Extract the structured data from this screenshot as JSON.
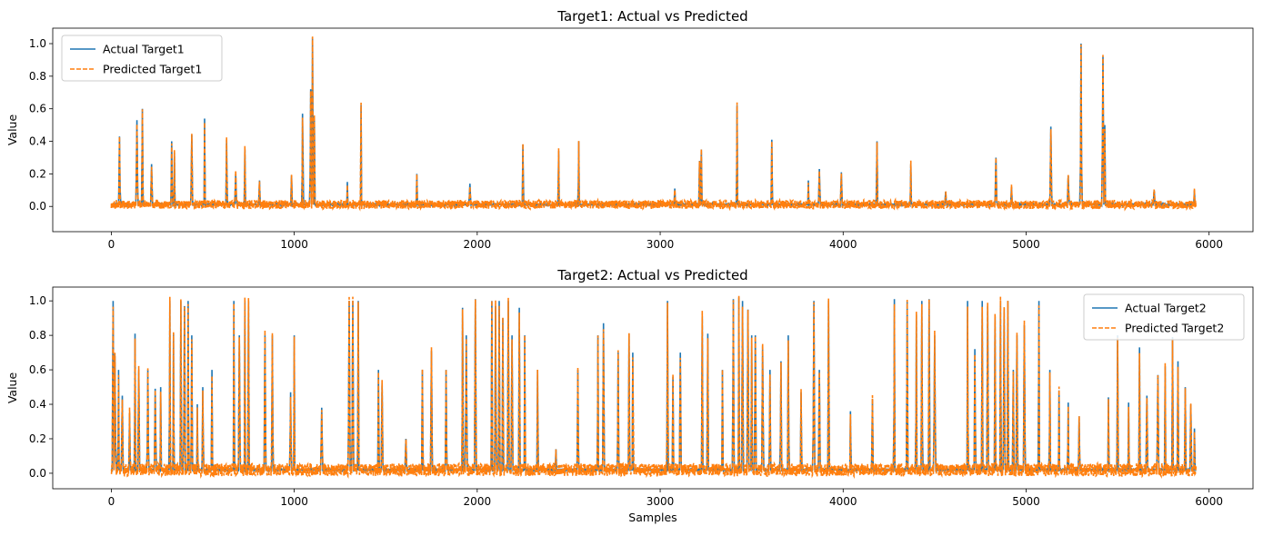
{
  "chart_data": [
    {
      "type": "line",
      "title": "Target1: Actual vs Predicted",
      "xlabel": "",
      "ylabel": "Value",
      "xlim": [
        -320,
        6240
      ],
      "ylim": [
        -0.155,
        1.095
      ],
      "xticks": [
        0,
        1000,
        2000,
        3000,
        4000,
        5000,
        6000
      ],
      "yticks": [
        0.0,
        0.2,
        0.4,
        0.6,
        0.8,
        1.0
      ],
      "ytick_labels": [
        "0.0",
        "0.2",
        "0.4",
        "0.6",
        "0.8",
        "1.0"
      ],
      "legend": "upper-left",
      "grid": false,
      "n_samples": 5930,
      "baseline": 0.012,
      "series": [
        {
          "name": "Actual Target1",
          "color": "#1f77b4",
          "style": "solid"
        },
        {
          "name": "Predicted Target1",
          "color": "#ff7f0e",
          "style": "dashed"
        }
      ],
      "spikes": [
        [
          45,
          0.43
        ],
        [
          140,
          0.53
        ],
        [
          170,
          0.6
        ],
        [
          220,
          0.26
        ],
        [
          330,
          0.4
        ],
        [
          345,
          0.33
        ],
        [
          440,
          0.44
        ],
        [
          510,
          0.54
        ],
        [
          630,
          0.41
        ],
        [
          680,
          0.2
        ],
        [
          730,
          0.35
        ],
        [
          810,
          0.16
        ],
        [
          985,
          0.19
        ],
        [
          1045,
          0.57
        ],
        [
          1090,
          0.72
        ],
        [
          1100,
          1.04
        ],
        [
          1110,
          0.55
        ],
        [
          1290,
          0.15
        ],
        [
          1365,
          0.62
        ],
        [
          1670,
          0.2
        ],
        [
          1960,
          0.14
        ],
        [
          2250,
          0.38
        ],
        [
          2445,
          0.34
        ],
        [
          2555,
          0.4
        ],
        [
          3080,
          0.11
        ],
        [
          3215,
          0.28
        ],
        [
          3225,
          0.35
        ],
        [
          3420,
          0.62
        ],
        [
          3610,
          0.41
        ],
        [
          3810,
          0.16
        ],
        [
          3870,
          0.23
        ],
        [
          3990,
          0.21
        ],
        [
          4185,
          0.4
        ],
        [
          4370,
          0.26
        ],
        [
          4560,
          0.09
        ],
        [
          4835,
          0.3
        ],
        [
          4920,
          0.12
        ],
        [
          5135,
          0.49
        ],
        [
          5230,
          0.19
        ],
        [
          5300,
          1.0
        ],
        [
          5420,
          0.92
        ],
        [
          5430,
          0.5
        ],
        [
          5700,
          0.1
        ],
        [
          5920,
          0.1
        ]
      ]
    },
    {
      "type": "line",
      "title": "Target2: Actual vs Predicted",
      "xlabel": "Samples",
      "ylabel": "Value",
      "xlim": [
        -320,
        6240
      ],
      "ylim": [
        -0.09,
        1.08
      ],
      "xticks": [
        0,
        1000,
        2000,
        3000,
        4000,
        5000,
        6000
      ],
      "yticks": [
        0.0,
        0.2,
        0.4,
        0.6,
        0.8,
        1.0
      ],
      "ytick_labels": [
        "0.0",
        "0.2",
        "0.4",
        "0.6",
        "0.8",
        "1.0"
      ],
      "legend": "upper-right",
      "grid": false,
      "n_samples": 5930,
      "baseline": 0.02,
      "series": [
        {
          "name": "Actual Target2",
          "color": "#1f77b4",
          "style": "solid"
        },
        {
          "name": "Predicted Target2",
          "color": "#ff7f0e",
          "style": "dashed"
        }
      ],
      "spikes": [
        [
          10,
          1.0
        ],
        [
          20,
          0.68
        ],
        [
          40,
          0.6
        ],
        [
          60,
          0.45
        ],
        [
          100,
          0.35
        ],
        [
          130,
          0.81
        ],
        [
          150,
          0.6
        ],
        [
          200,
          0.6
        ],
        [
          240,
          0.49
        ],
        [
          270,
          0.5
        ],
        [
          320,
          1.0
        ],
        [
          340,
          0.81
        ],
        [
          380,
          1.0
        ],
        [
          400,
          0.97
        ],
        [
          420,
          1.0
        ],
        [
          440,
          0.8
        ],
        [
          470,
          0.4
        ],
        [
          500,
          0.5
        ],
        [
          550,
          0.6
        ],
        [
          670,
          1.0
        ],
        [
          700,
          0.8
        ],
        [
          730,
          1.0
        ],
        [
          750,
          1.0
        ],
        [
          840,
          0.8
        ],
        [
          880,
          0.8
        ],
        [
          980,
          0.47
        ],
        [
          1000,
          0.8
        ],
        [
          1150,
          0.38
        ],
        [
          1300,
          1.0
        ],
        [
          1320,
          1.0
        ],
        [
          1350,
          1.0
        ],
        [
          1460,
          0.6
        ],
        [
          1480,
          0.52
        ],
        [
          1610,
          0.2
        ],
        [
          1700,
          0.6
        ],
        [
          1750,
          0.71
        ],
        [
          1830,
          0.6
        ],
        [
          1920,
          0.96
        ],
        [
          1940,
          0.8
        ],
        [
          1990,
          1.01
        ],
        [
          2080,
          1.0
        ],
        [
          2100,
          0.97
        ],
        [
          2120,
          1.0
        ],
        [
          2140,
          0.9
        ],
        [
          2170,
          1.0
        ],
        [
          2190,
          0.8
        ],
        [
          2230,
          0.96
        ],
        [
          2260,
          0.8
        ],
        [
          2330,
          0.6
        ],
        [
          2430,
          0.14
        ],
        [
          2550,
          0.6
        ],
        [
          2660,
          0.8
        ],
        [
          2690,
          0.87
        ],
        [
          2770,
          0.7
        ],
        [
          2830,
          0.81
        ],
        [
          2850,
          0.7
        ],
        [
          3040,
          1.0
        ],
        [
          3070,
          0.56
        ],
        [
          3110,
          0.7
        ],
        [
          3230,
          0.91
        ],
        [
          3260,
          0.81
        ],
        [
          3340,
          0.6
        ],
        [
          3400,
          1.01
        ],
        [
          3430,
          1.02
        ],
        [
          3450,
          1.0
        ],
        [
          3480,
          0.95
        ],
        [
          3500,
          0.8
        ],
        [
          3520,
          0.8
        ],
        [
          3560,
          0.74
        ],
        [
          3600,
          0.6
        ],
        [
          3660,
          0.65
        ],
        [
          3700,
          0.8
        ],
        [
          3770,
          0.47
        ],
        [
          3840,
          1.0
        ],
        [
          3870,
          0.6
        ],
        [
          3920,
          1.0
        ],
        [
          4040,
          0.36
        ],
        [
          4160,
          0.43
        ],
        [
          4280,
          1.01
        ],
        [
          4350,
          1.0
        ],
        [
          4400,
          0.92
        ],
        [
          4430,
          1.0
        ],
        [
          4470,
          1.01
        ],
        [
          4500,
          0.8
        ],
        [
          4680,
          1.0
        ],
        [
          4720,
          0.72
        ],
        [
          4760,
          1.0
        ],
        [
          4790,
          0.97
        ],
        [
          4830,
          0.91
        ],
        [
          4860,
          1.0
        ],
        [
          4880,
          0.96
        ],
        [
          4900,
          1.0
        ],
        [
          4930,
          0.6
        ],
        [
          4950,
          0.8
        ],
        [
          4990,
          0.86
        ],
        [
          5070,
          1.0
        ],
        [
          5130,
          0.6
        ],
        [
          5180,
          0.48
        ],
        [
          5230,
          0.41
        ],
        [
          5290,
          0.33
        ],
        [
          5450,
          0.44
        ],
        [
          5500,
          0.8
        ],
        [
          5560,
          0.41
        ],
        [
          5620,
          0.73
        ],
        [
          5660,
          0.45
        ],
        [
          5720,
          0.57
        ],
        [
          5760,
          0.62
        ],
        [
          5800,
          0.79
        ],
        [
          5830,
          0.65
        ],
        [
          5870,
          0.5
        ],
        [
          5900,
          0.4
        ],
        [
          5920,
          0.26
        ]
      ]
    }
  ]
}
